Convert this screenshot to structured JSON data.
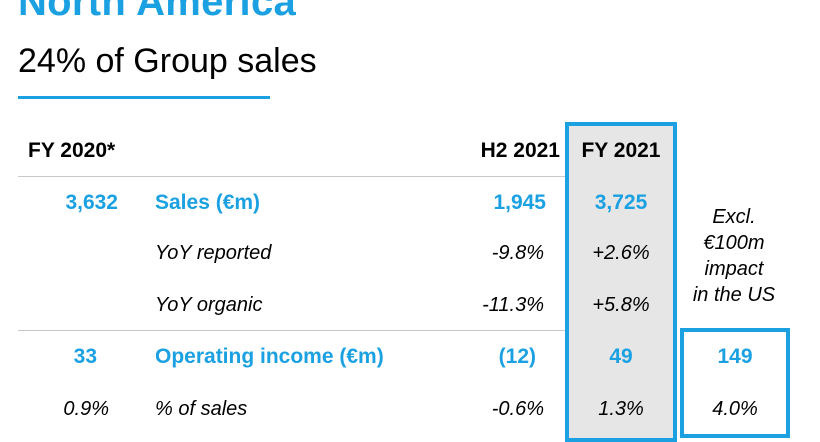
{
  "title": "North America",
  "subtitle": "24% of Group sales",
  "columns": {
    "fy2020": "FY 2020*",
    "h2_2021": "H2 2021",
    "fy2021": "FY 2021"
  },
  "rows": [
    {
      "fy2020": "3,632",
      "label": "Sales (€m)",
      "h2_2021": "1,945",
      "fy2021": "3,725"
    },
    {
      "fy2020": "",
      "label": "YoY reported",
      "h2_2021": "-9.8%",
      "fy2021": "+2.6%"
    },
    {
      "fy2020": "",
      "label": "YoY organic",
      "h2_2021": "-11.3%",
      "fy2021": "+5.8%"
    },
    {
      "fy2020": "33",
      "label": "Operating income (€m)",
      "h2_2021": "(12)",
      "fy2021": "49",
      "adjusted": "149"
    },
    {
      "fy2020": "0.9%",
      "label": "% of sales",
      "h2_2021": "-0.6%",
      "fy2021": "1.3%",
      "adjusted": "4.0%"
    }
  ],
  "note": {
    "line1": "Excl.",
    "line2": "€100m",
    "line3": "impact",
    "line4": "in the US"
  },
  "colors": {
    "accent": "#1ba1e2",
    "highlight_fill": "#e6e6e6",
    "rule": "#c8c8c8"
  }
}
